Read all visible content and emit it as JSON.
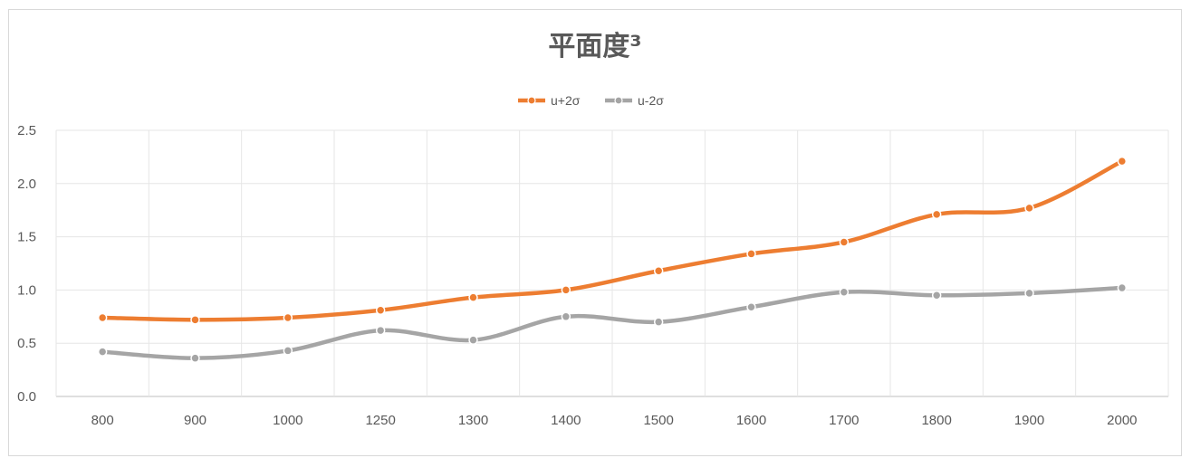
{
  "chart_data": {
    "type": "line",
    "title": "平面度³",
    "categories": [
      "800",
      "900",
      "1000",
      "1250",
      "1300",
      "1400",
      "1500",
      "1600",
      "1700",
      "1800",
      "1900",
      "2000"
    ],
    "ylim": [
      0,
      2.5
    ],
    "yticks": [
      "0.0",
      "0.5",
      "1.0",
      "1.5",
      "2.0",
      "2.5"
    ],
    "grid": true,
    "legend_position": "top",
    "series": [
      {
        "name": "u+2σ",
        "color": "#ed7d31",
        "values": [
          0.74,
          0.72,
          0.74,
          0.81,
          0.93,
          1.0,
          1.18,
          1.34,
          1.45,
          1.71,
          1.77,
          2.21
        ]
      },
      {
        "name": "u-2σ",
        "color": "#a5a5a5",
        "values": [
          0.42,
          0.36,
          0.43,
          0.62,
          0.53,
          0.75,
          0.7,
          0.84,
          0.98,
          0.95,
          0.97,
          1.02
        ]
      }
    ]
  }
}
